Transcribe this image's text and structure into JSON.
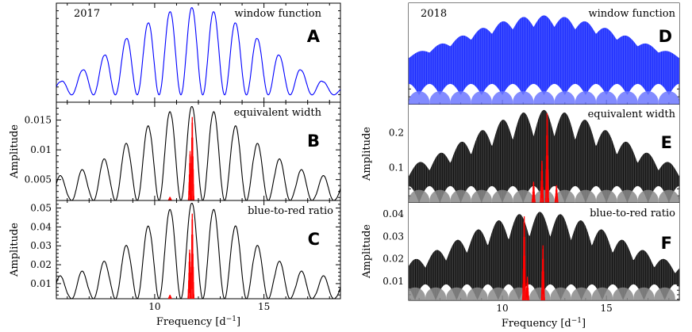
{
  "figure": {
    "xlabel": "Frequency [d",
    "xlabel_sup": "−1",
    "xlabel_close": "]",
    "ylabel": "Amplitude"
  },
  "chart_data": [
    {
      "id": "A",
      "column": "2017",
      "type": "line",
      "letter": "A",
      "year": "2017",
      "label": "window function",
      "color": "#0000ff",
      "xlim": [
        5.5,
        18.5
      ],
      "ylim": [
        0,
        1.08
      ],
      "xticks": [],
      "yticks": [],
      "yticklabels": [],
      "peak": 11.7,
      "spacing": 1.0,
      "envelope_width": 3.3,
      "floor": 0.03
    },
    {
      "id": "B",
      "column": "2017",
      "type": "line",
      "letter": "B",
      "label": "equivalent width",
      "color": "#000000",
      "xlim": [
        5.5,
        18.5
      ],
      "ylim": [
        0.0015,
        0.018
      ],
      "yticks": [
        0.005,
        0.01,
        0.015
      ],
      "yticklabels": [
        "0.005",
        "0.01",
        "0.015"
      ],
      "peak": 11.7,
      "spacing": 1.0,
      "amplitude": 0.0163,
      "envelope_width": 2.6,
      "floor": 0.0035,
      "red_peaks": [
        {
          "x": 11.72,
          "y": 0.0155
        },
        {
          "x": 11.62,
          "y": 0.0098
        },
        {
          "x": 10.7,
          "y": 0.0021
        }
      ]
    },
    {
      "id": "C",
      "column": "2017",
      "type": "line",
      "letter": "C",
      "label": "blue-to-red ratio",
      "color": "#000000",
      "xlim": [
        5.5,
        18.5
      ],
      "ylim": [
        0.002,
        0.054
      ],
      "yticks": [
        0.01,
        0.02,
        0.03,
        0.04,
        0.05
      ],
      "yticklabels": [
        "0.01",
        "0.02",
        "0.03",
        "0.04",
        "0.05"
      ],
      "xticks": [
        10,
        15
      ],
      "xticklabels": [
        "10",
        "15"
      ],
      "peak": 11.7,
      "spacing": 1.0,
      "amplitude": 0.0495,
      "envelope_width": 2.4,
      "floor": 0.011,
      "red_peaks": [
        {
          "x": 11.72,
          "y": 0.047
        },
        {
          "x": 11.6,
          "y": 0.028
        },
        {
          "x": 10.7,
          "y": 0.004
        }
      ]
    },
    {
      "id": "D",
      "column": "2018",
      "type": "line",
      "letter": "D",
      "year": "2018",
      "label": "window function",
      "color": "#0000ff",
      "xlim": [
        5.5,
        18.5
      ],
      "ylim": [
        0,
        1.08
      ],
      "xticks": [],
      "yticks": [],
      "yticklabels": [],
      "peak": 12.0,
      "envelope_width": 4.5
    },
    {
      "id": "E",
      "column": "2018",
      "type": "line",
      "letter": "E",
      "label": "equivalent width",
      "color": "#000000",
      "xlim": [
        5.5,
        18.5
      ],
      "ylim": [
        0.0,
        0.28
      ],
      "yticks": [
        0.1,
        0.2
      ],
      "yticklabels": [
        "0.1",
        "0.2"
      ],
      "peak": 12.0,
      "amplitude": 0.265,
      "envelope_width": 3.6,
      "red_peaks": [
        {
          "x": 12.15,
          "y": 0.255
        },
        {
          "x": 11.9,
          "y": 0.12
        },
        {
          "x": 11.5,
          "y": 0.06
        },
        {
          "x": 12.6,
          "y": 0.05
        }
      ]
    },
    {
      "id": "F",
      "column": "2018",
      "type": "line",
      "letter": "F",
      "label": "blue-to-red ratio",
      "color": "#000000",
      "xlim": [
        5.5,
        18.5
      ],
      "ylim": [
        0.0015,
        0.045
      ],
      "yticks": [
        0.01,
        0.02,
        0.03,
        0.04
      ],
      "yticklabels": [
        "0.01",
        "0.02",
        "0.03",
        "0.04"
      ],
      "xticks": [
        10,
        15
      ],
      "xticklabels": [
        "10",
        "15"
      ],
      "peak": 11.8,
      "amplitude": 0.041,
      "envelope_width": 3.8,
      "red_peaks": [
        {
          "x": 11.05,
          "y": 0.039
        },
        {
          "x": 11.95,
          "y": 0.026
        },
        {
          "x": 11.2,
          "y": 0.012
        }
      ]
    }
  ]
}
